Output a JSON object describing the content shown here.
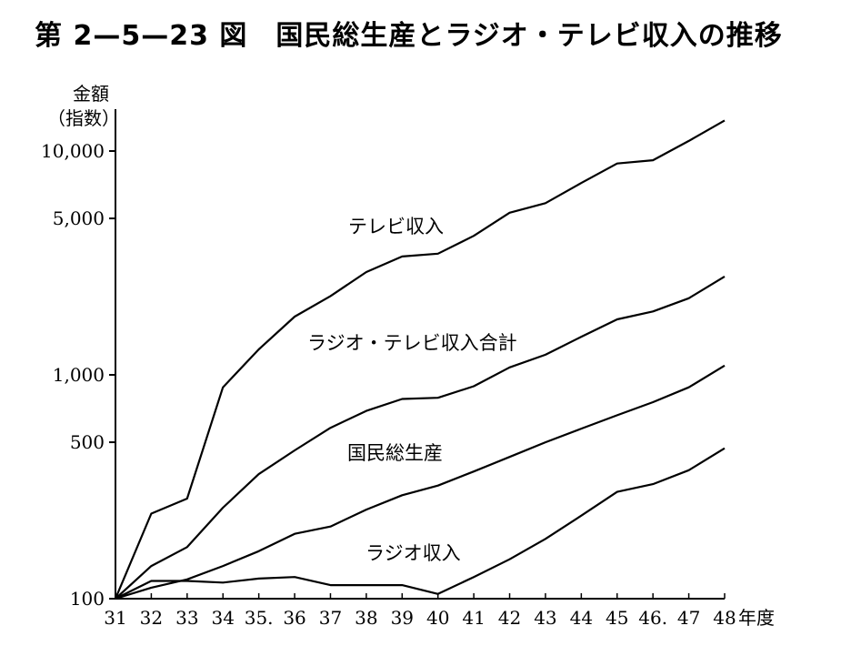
{
  "page_title": "第 2—5—23 図　国民総生産とラジオ・テレビ収入の推移",
  "chart_data": {
    "type": "line",
    "title": "国民総生産とラジオ・テレビ収入の推移",
    "y_label_line1": "金額",
    "y_label_line2": "（指数）",
    "x_unit_label": "年度",
    "y_scale": "log",
    "ylim": [
      100,
      12500
    ],
    "y_ticks": [
      {
        "value": 100,
        "label": "100"
      },
      {
        "value": 500,
        "label": "500"
      },
      {
        "value": 1000,
        "label": "1,000"
      },
      {
        "value": 5000,
        "label": "5,000"
      },
      {
        "value": 10000,
        "label": "10,000"
      }
    ],
    "x": [
      31,
      32,
      33,
      34,
      35,
      36,
      37,
      38,
      39,
      40,
      41,
      42,
      43,
      44,
      45,
      46,
      47,
      48
    ],
    "x_tick_labels": [
      "31",
      "32",
      "33",
      "34",
      "35.",
      "36",
      "37",
      "38",
      "39",
      "40",
      "41",
      "42",
      "43",
      "44",
      "45",
      "46.",
      "47",
      "48"
    ],
    "series": [
      {
        "name": "テレビ収入",
        "values": [
          100,
          240,
          280,
          880,
          1300,
          1820,
          2250,
          2880,
          3380,
          3480,
          4180,
          5300,
          5850,
          7200,
          8800,
          9100,
          11100,
          13700
        ]
      },
      {
        "name": "ラジオ・テレビ収入合計",
        "values": [
          100,
          140,
          170,
          255,
          360,
          460,
          580,
          690,
          780,
          790,
          890,
          1080,
          1230,
          1480,
          1770,
          1920,
          2200,
          2750
        ]
      },
      {
        "name": "国民総生産",
        "values": [
          100,
          112,
          122,
          140,
          163,
          195,
          210,
          250,
          290,
          320,
          370,
          430,
          500,
          575,
          660,
          755,
          880,
          1100
        ]
      },
      {
        "name": "ラジオ収入",
        "values": [
          100,
          120,
          120,
          118,
          123,
          125,
          115,
          115,
          115,
          105,
          125,
          150,
          185,
          235,
          300,
          325,
          375,
          470
        ]
      }
    ]
  }
}
